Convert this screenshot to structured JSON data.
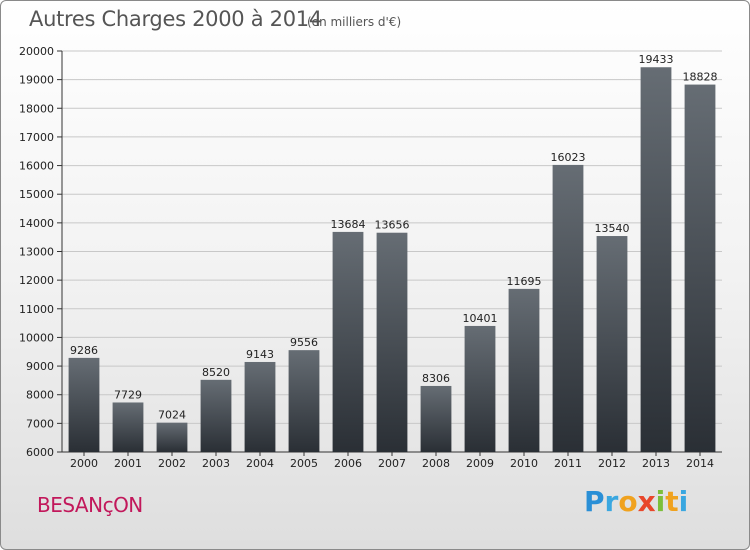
{
  "header": {
    "title": "Autres Charges 2000 à 2014",
    "subtitle": "(en milliers d'€)"
  },
  "footer": {
    "city": "BESANçON",
    "brand": [
      {
        "ch": "P",
        "color": "#2a8fd6"
      },
      {
        "ch": "r",
        "color": "#3aa7e0"
      },
      {
        "ch": "o",
        "color": "#f0a21e"
      },
      {
        "ch": "x",
        "color": "#e8472b"
      },
      {
        "ch": "i",
        "color": "#7cbf3a"
      },
      {
        "ch": "t",
        "color": "#f0a21e"
      },
      {
        "ch": "i",
        "color": "#3aa7e0"
      }
    ]
  },
  "chart_data": {
    "type": "bar",
    "title": "Autres Charges 2000 à 2014",
    "subtitle": "(en milliers d'€)",
    "categories": [
      "2000",
      "2001",
      "2002",
      "2003",
      "2004",
      "2005",
      "2006",
      "2007",
      "2008",
      "2009",
      "2010",
      "2011",
      "2012",
      "2013",
      "2014"
    ],
    "values": [
      9286,
      7729,
      7024,
      8520,
      9143,
      9556,
      13684,
      13656,
      8306,
      10401,
      11695,
      16023,
      13540,
      19433,
      18828
    ],
    "ylim": [
      6000,
      20000
    ],
    "yticks": [
      6000,
      7000,
      8000,
      9000,
      10000,
      11000,
      12000,
      13000,
      14000,
      15000,
      16000,
      17000,
      18000,
      19000,
      20000
    ],
    "grid": true,
    "bar_color": "#3c4249"
  }
}
